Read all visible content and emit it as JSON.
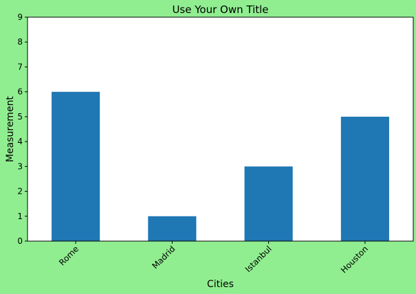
{
  "colors": {
    "figure_background": "#90ee90",
    "plot_background": "#ffffff",
    "bar_fill": "#1f77b4",
    "axis_color": "#000000"
  },
  "chart_data": {
    "type": "bar",
    "title": "Use Your Own Title",
    "xlabel": "Cities",
    "ylabel": "Measurement",
    "categories": [
      "Rome",
      "Madrid",
      "Istanbul",
      "Houston"
    ],
    "values": [
      6,
      1,
      3,
      5
    ],
    "ylim": [
      0,
      9
    ],
    "yticks": [
      0,
      1,
      2,
      3,
      4,
      5,
      6,
      7,
      8,
      9
    ],
    "xtick_rotation_deg": 45,
    "grid": false,
    "legend": null
  }
}
